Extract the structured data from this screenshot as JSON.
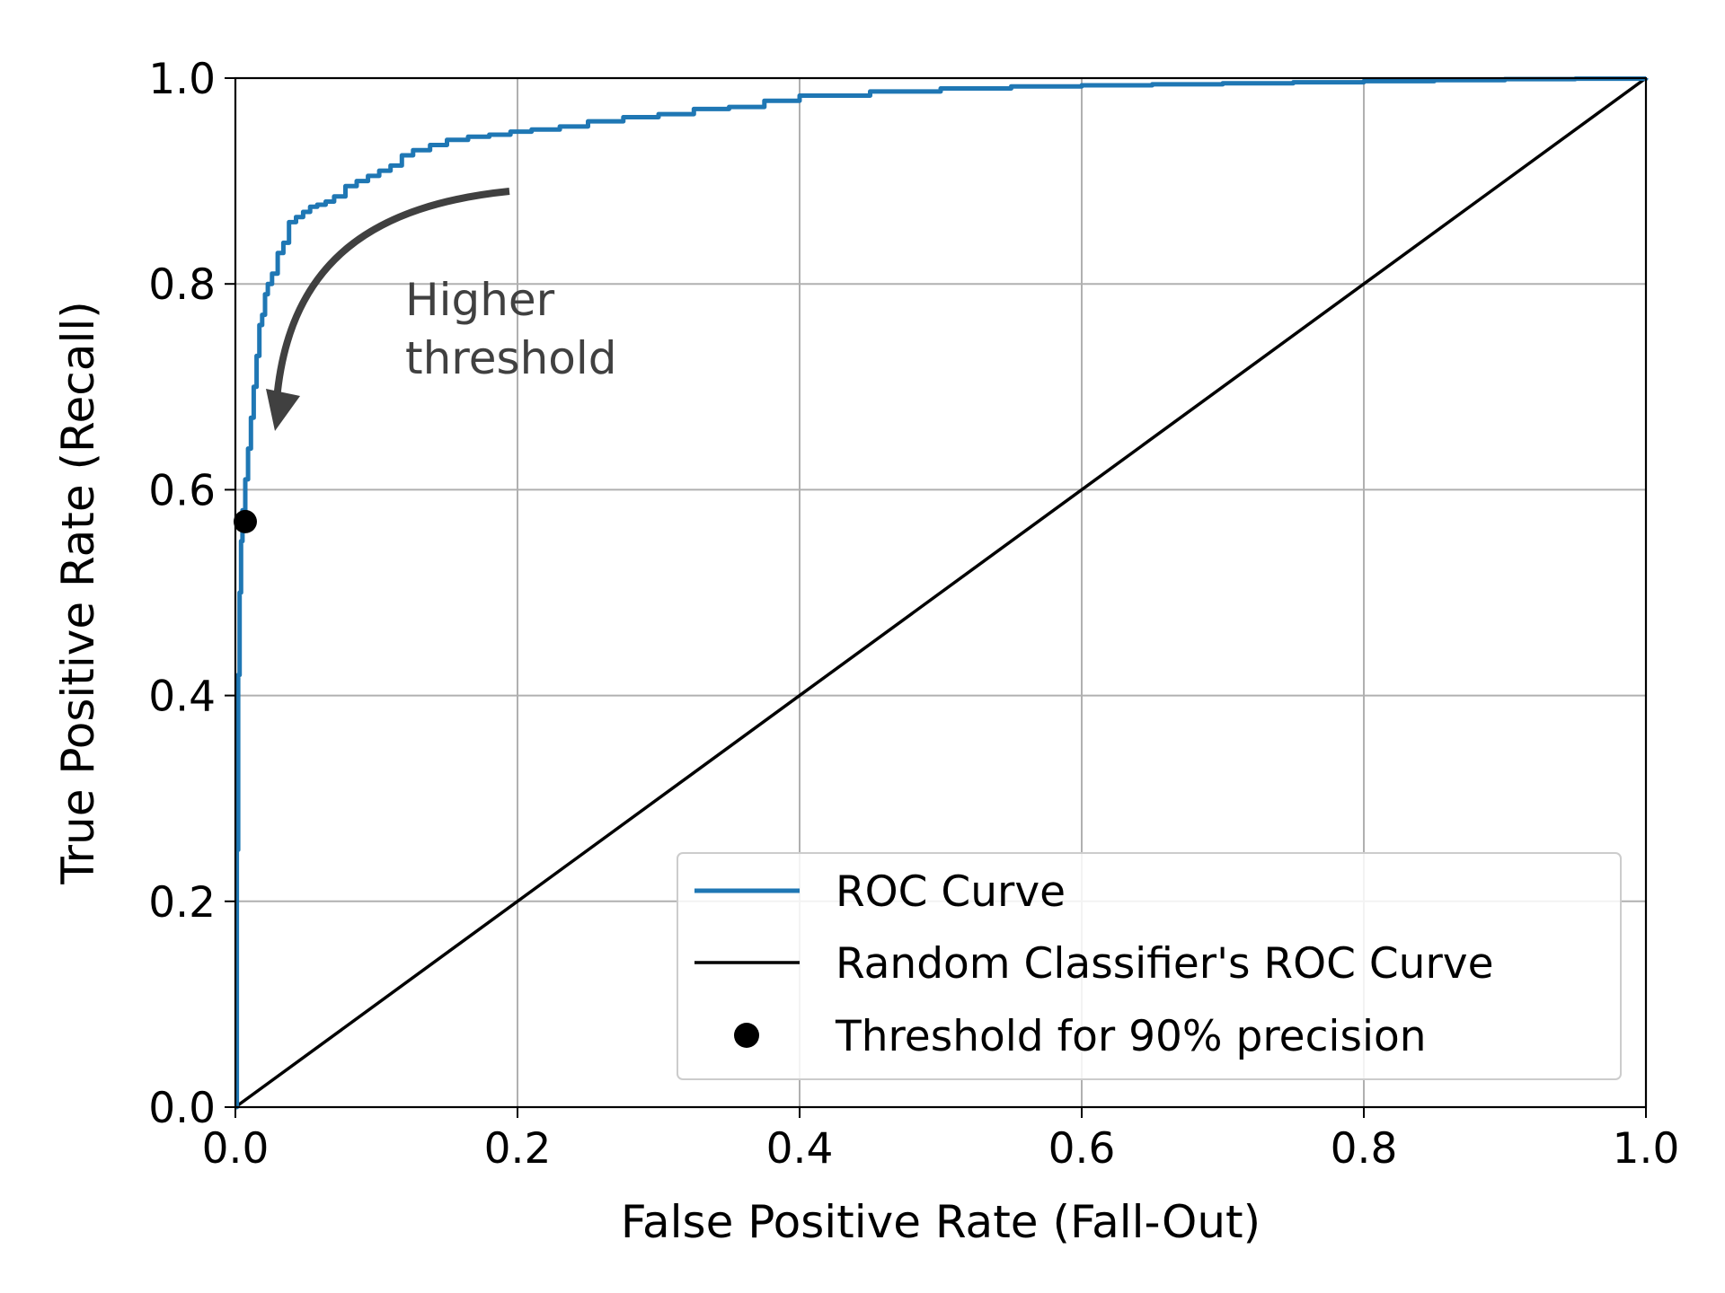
{
  "chart_data": {
    "type": "line",
    "title": "",
    "xlabel": "False Positive Rate (Fall-Out)",
    "ylabel": "True Positive Rate (Recall)",
    "xlim": [
      0.0,
      1.0
    ],
    "ylim": [
      0.0,
      1.0
    ],
    "xticks": [
      "0.0",
      "0.2",
      "0.4",
      "0.6",
      "0.8",
      "1.0"
    ],
    "yticks": [
      "0.0",
      "0.2",
      "0.4",
      "0.6",
      "0.8",
      "1.0"
    ],
    "grid": true,
    "legend_position": "lower-right",
    "series": [
      {
        "name": "ROC Curve",
        "color": "#1f77b4",
        "style": "solid",
        "x": [
          0.0,
          0.001,
          0.002,
          0.003,
          0.004,
          0.005,
          0.007,
          0.009,
          0.011,
          0.013,
          0.015,
          0.017,
          0.019,
          0.021,
          0.023,
          0.026,
          0.03,
          0.034,
          0.038,
          0.043,
          0.048,
          0.053,
          0.058,
          0.064,
          0.07,
          0.078,
          0.086,
          0.094,
          0.102,
          0.11,
          0.118,
          0.126,
          0.138,
          0.15,
          0.165,
          0.18,
          0.195,
          0.21,
          0.23,
          0.25,
          0.275,
          0.3,
          0.325,
          0.35,
          0.375,
          0.4,
          0.45,
          0.5,
          0.55,
          0.6,
          0.65,
          0.7,
          0.75,
          0.8,
          0.85,
          0.9,
          0.95,
          1.0
        ],
        "y": [
          0.0,
          0.25,
          0.42,
          0.5,
          0.55,
          0.58,
          0.61,
          0.64,
          0.67,
          0.7,
          0.73,
          0.76,
          0.77,
          0.79,
          0.8,
          0.81,
          0.83,
          0.84,
          0.86,
          0.865,
          0.87,
          0.875,
          0.877,
          0.88,
          0.885,
          0.895,
          0.9,
          0.905,
          0.91,
          0.915,
          0.925,
          0.93,
          0.935,
          0.94,
          0.943,
          0.945,
          0.948,
          0.95,
          0.953,
          0.958,
          0.962,
          0.965,
          0.97,
          0.972,
          0.978,
          0.983,
          0.987,
          0.99,
          0.992,
          0.993,
          0.994,
          0.995,
          0.996,
          0.997,
          0.998,
          0.999,
          0.9995,
          1.0
        ]
      },
      {
        "name": "Random Classifier's ROC Curve",
        "color": "#000000",
        "style": "solid",
        "x": [
          0.0,
          1.0
        ],
        "y": [
          0.0,
          1.0
        ]
      },
      {
        "name": "Threshold for 90% precision",
        "color": "#000000",
        "style": "marker",
        "x": [
          0.007
        ],
        "y": [
          0.569
        ]
      }
    ],
    "annotations": [
      {
        "text_lines": [
          "Higher",
          "threshold"
        ],
        "color": "#404040"
      }
    ]
  }
}
